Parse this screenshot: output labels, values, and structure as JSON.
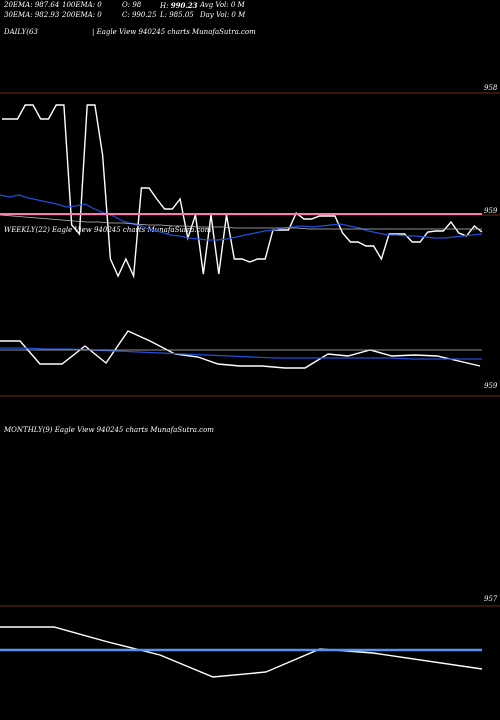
{
  "header": {
    "row1": {
      "ema20": "20EMA: 987.64",
      "ema100": "100EMA: 0",
      "open": "O: 98",
      "high_prefix": "H: ",
      "high_value": "990.23",
      "avg_vol": "Avg Vol: 0  M"
    },
    "row2": {
      "ema30": "30EMA: 982.93",
      "ema200": "200EMA: 0",
      "close": "C: 990.25",
      "low": "L: 985.05",
      "day_vol": "Day Vol: 0  M"
    }
  },
  "colors": {
    "background": "#000000",
    "price": "#ffffff",
    "ema_blue": "#1f4fd8",
    "ema_gray": "#bfbfbf",
    "pink": "#ff7aa8",
    "grid_brown": "#8b3a1a",
    "monthly_blue": "#5b8ff0"
  },
  "chart_data": [
    {
      "type": "line",
      "panel": "daily",
      "label_left": "DAILY(63",
      "label_center": "| Eagle  View  940245 charts MunafaSutra.com",
      "ticks": [
        "958",
        "959"
      ],
      "series": [
        {
          "values": [
            955,
            955,
            955,
            941,
            941,
            955,
            955,
            941,
            941,
            1061,
            1070,
            941,
            941,
            991,
            1095,
            1112,
            1095,
            1112,
            1024,
            1024,
            1035,
            1045,
            1045,
            1035,
            1074,
            1051,
            1110,
            1051,
            1110,
            1051,
            1095,
            1095,
            1098,
            1095,
            1095,
            1066,
            1066,
            1066,
            1049,
            1055,
            1055,
            1052,
            1052,
            1052,
            1069,
            1078,
            1078,
            1082,
            1082,
            1095,
            1070,
            1070,
            1070,
            1078,
            1078,
            1068,
            1067,
            1067,
            1058,
            1069,
            1072,
            1062,
            1068
          ]
        },
        {
          "values": [
            1031,
            1033,
            1031,
            1034,
            1036,
            1038,
            1040,
            1043,
            1042,
            1040,
            1045,
            1049,
            1052,
            1057,
            1060,
            1062,
            1066,
            1068,
            1071,
            1072,
            1074,
            1075,
            1076,
            1076,
            1075,
            1073,
            1071,
            1069,
            1067,
            1066,
            1064,
            1063,
            1062,
            1063,
            1062,
            1061,
            1060,
            1062,
            1064,
            1067,
            1069,
            1071,
            1071,
            1072,
            1072,
            1073,
            1074,
            1074,
            1073,
            1072,
            1071,
            1070
          ]
        },
        {
          "values": [
            1051,
            1052,
            1053,
            1054,
            1055,
            1056,
            1057,
            1058,
            1058,
            1059,
            1059,
            1060,
            1061,
            1061,
            1062,
            1062,
            1063,
            1063,
            1063,
            1064,
            1064,
            1064,
            1064,
            1064,
            1064,
            1065,
            1065,
            1065,
            1065,
            1065,
            1065,
            1065,
            1065,
            1065,
            1065,
            1065,
            1065,
            1065,
            1065,
            1065
          ]
        },
        {
          "values": [
            1050,
            1050,
            1050,
            1050,
            1050,
            1050,
            1050,
            1050,
            1050,
            1050
          ]
        }
      ]
    },
    {
      "type": "line",
      "panel": "weekly",
      "label": "WEEKLY(22) Eagle  View  940245 charts MunafaSutra.com",
      "ticks": [
        "959"
      ],
      "series": [
        {
          "values": [
            983,
            983,
            1006,
            1006,
            988,
            1005,
            973,
            983,
            996,
            999,
            1006,
            1008,
            1008,
            1010,
            1010,
            996,
            998,
            992,
            998,
            997,
            998,
            1008
          ]
        },
        {
          "values": [
            990,
            990,
            991,
            991,
            992,
            993,
            994,
            995,
            996,
            997,
            998,
            999,
            1000,
            1000,
            1000,
            1000,
            1000,
            1000,
            1001,
            1001,
            1001,
            1001
          ]
        },
        {
          "values": [
            992,
            992,
            992,
            992,
            992,
            992,
            992,
            992,
            992,
            992,
            992,
            992,
            992,
            992,
            992,
            992,
            992,
            992,
            992,
            992,
            992,
            992
          ]
        }
      ]
    },
    {
      "type": "line",
      "panel": "monthly",
      "label": "MONTHLY(9) Eagle  View  940245 charts MunafaSutra.com",
      "ticks": [
        "957"
      ],
      "series": [
        {
          "values": [
            940,
            940,
            955,
            968,
            990,
            985,
            962,
            966,
            982
          ]
        },
        {
          "values": [
            963,
            963,
            963,
            963,
            963,
            963,
            963,
            963,
            963
          ]
        }
      ]
    }
  ]
}
